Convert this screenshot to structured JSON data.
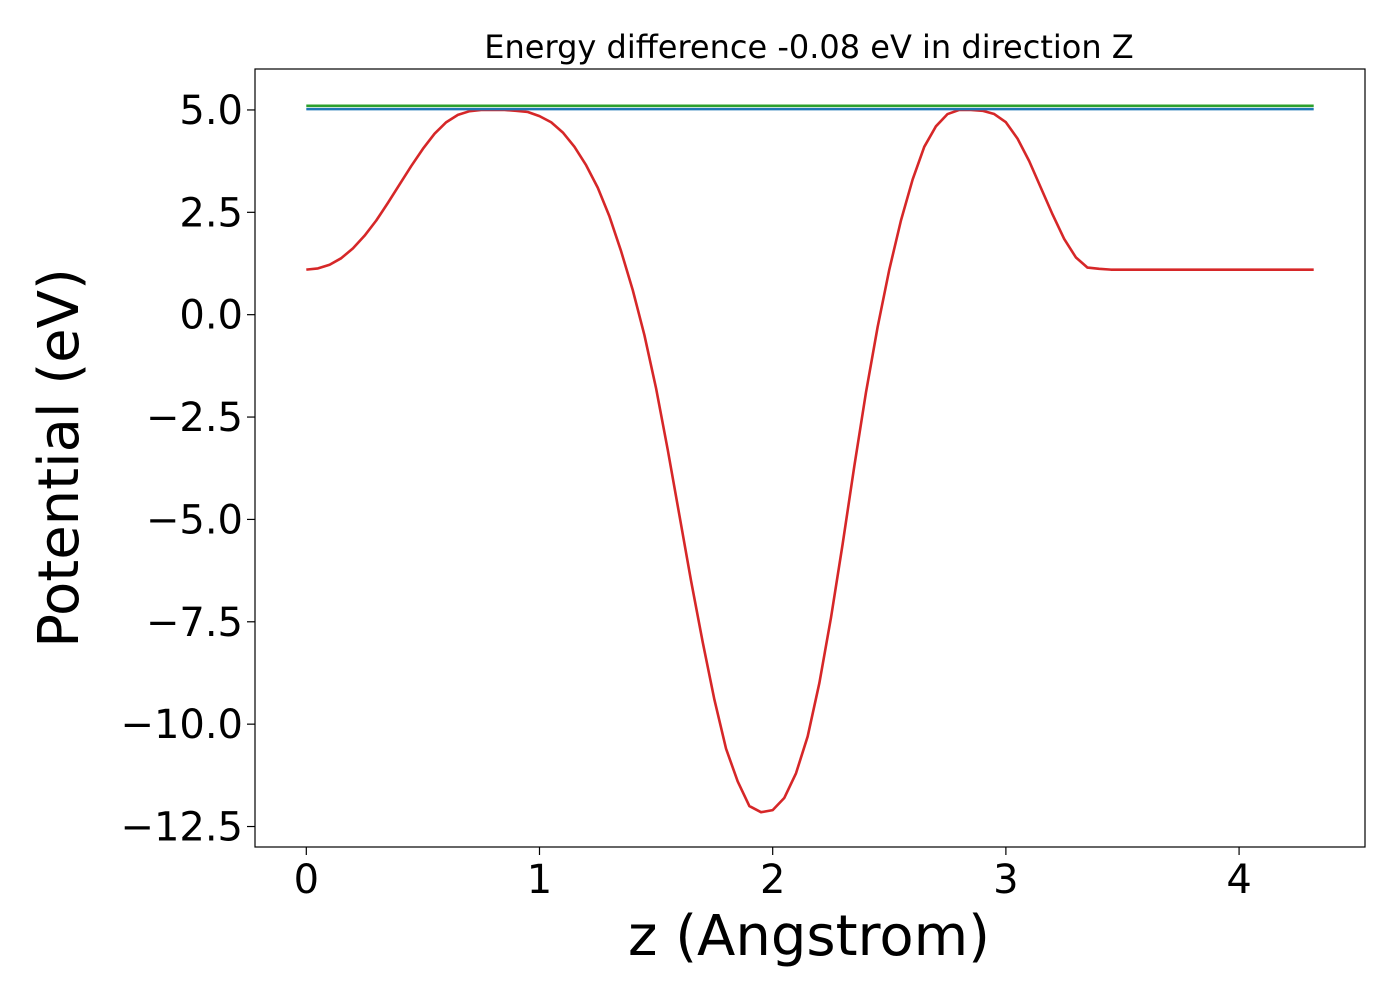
{
  "chart_data": {
    "type": "line",
    "title": "Energy difference -0.08 eV in direction Z",
    "xlabel": "z (Angstrom)",
    "ylabel": "Potential (eV)",
    "xlim": [
      -0.22,
      4.54
    ],
    "ylim": [
      -13.0,
      6.0
    ],
    "xticks": [
      0,
      1,
      2,
      3,
      4
    ],
    "xtick_labels": [
      "0",
      "1",
      "2",
      "3",
      "4"
    ],
    "yticks": [
      5.0,
      2.5,
      0.0,
      -2.5,
      -5.0,
      -7.5,
      -10.0,
      -12.5
    ],
    "ytick_labels": [
      "5.0",
      "2.5",
      "0.0",
      "−2.5",
      "−5.0",
      "−7.5",
      "−10.0",
      "−12.5"
    ],
    "grid": false,
    "series": [
      {
        "color": "#d62728",
        "x": [
          0.0,
          0.05,
          0.1,
          0.15,
          0.2,
          0.25,
          0.3,
          0.35,
          0.4,
          0.45,
          0.5,
          0.55,
          0.6,
          0.65,
          0.7,
          0.75,
          0.8,
          0.85,
          0.9,
          0.95,
          1.0,
          1.05,
          1.1,
          1.15,
          1.2,
          1.25,
          1.3,
          1.35,
          1.4,
          1.45,
          1.5,
          1.55,
          1.6,
          1.65,
          1.7,
          1.75,
          1.8,
          1.85,
          1.9,
          1.95,
          2.0,
          2.05,
          2.1,
          2.15,
          2.2,
          2.25,
          2.3,
          2.35,
          2.4,
          2.45,
          2.5,
          2.55,
          2.6,
          2.65,
          2.7,
          2.75,
          2.8,
          2.85,
          2.9,
          2.95,
          3.0,
          3.05,
          3.1,
          3.15,
          3.2,
          3.25,
          3.3,
          3.35,
          3.4,
          3.45,
          3.5,
          3.55,
          3.6,
          3.65,
          3.7,
          3.75,
          3.8,
          3.85,
          3.9,
          3.95,
          4.0,
          4.05,
          4.1,
          4.15,
          4.2,
          4.25,
          4.3,
          4.32
        ],
        "y": [
          1.1,
          1.13,
          1.22,
          1.38,
          1.62,
          1.93,
          2.3,
          2.73,
          3.18,
          3.63,
          4.05,
          4.42,
          4.7,
          4.88,
          4.97,
          5.0,
          5.0,
          5.0,
          4.98,
          4.95,
          4.85,
          4.7,
          4.45,
          4.1,
          3.65,
          3.1,
          2.4,
          1.55,
          0.6,
          -0.5,
          -1.8,
          -3.3,
          -4.9,
          -6.5,
          -8.0,
          -9.4,
          -10.6,
          -11.4,
          -12.0,
          -12.15,
          -12.1,
          -11.8,
          -11.2,
          -10.3,
          -9.0,
          -7.4,
          -5.6,
          -3.7,
          -1.9,
          -0.3,
          1.1,
          2.3,
          3.3,
          4.1,
          4.6,
          4.9,
          5.0,
          5.0,
          4.98,
          4.9,
          4.7,
          4.3,
          3.75,
          3.1,
          2.45,
          1.85,
          1.4,
          1.15,
          1.12,
          1.1,
          1.1,
          1.1,
          1.1,
          1.1,
          1.1,
          1.1,
          1.1,
          1.1,
          1.1,
          1.1,
          1.1,
          1.1,
          1.1,
          1.1,
          1.1,
          1.1,
          1.1,
          1.1
        ]
      },
      {
        "color": "#1f77b4",
        "x": [
          0.0,
          4.32
        ],
        "y": [
          5.02,
          5.02
        ]
      },
      {
        "color": "#2ca02c",
        "x": [
          0.0,
          4.32
        ],
        "y": [
          5.1,
          5.1
        ]
      }
    ]
  }
}
